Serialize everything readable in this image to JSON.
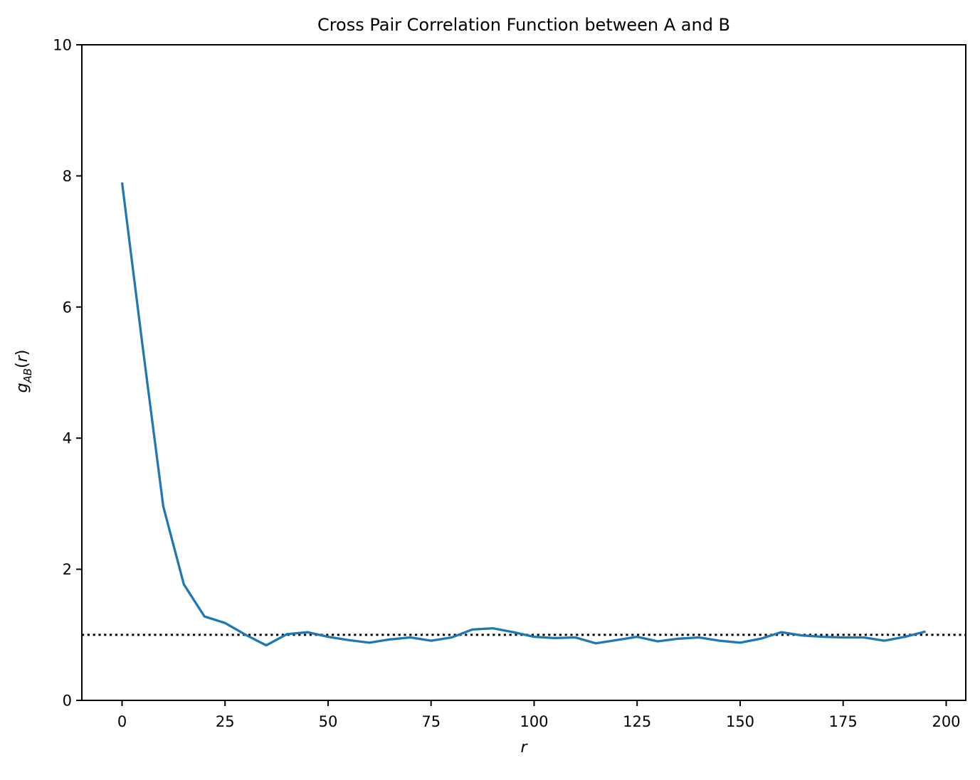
{
  "chart": {
    "title": "Cross Pair Correlation Function between A and B",
    "ylabel_parts": [
      "g",
      "AB",
      "(",
      "r",
      ")"
    ]
  },
  "chart_data": {
    "type": "line",
    "title": "Cross Pair Correlation Function between A and B",
    "xlabel": "r",
    "ylabel": "g_AB(r)",
    "x": [
      0,
      5,
      10,
      15,
      20,
      25,
      30,
      35,
      40,
      45,
      50,
      55,
      60,
      65,
      70,
      75,
      80,
      85,
      90,
      95,
      100,
      105,
      110,
      115,
      120,
      125,
      130,
      135,
      140,
      145,
      150,
      155,
      160,
      165,
      170,
      175,
      180,
      185,
      190,
      195
    ],
    "y": [
      7.9,
      5.4,
      2.96,
      1.77,
      1.28,
      1.18,
      1.0,
      0.84,
      1.01,
      1.04,
      0.97,
      0.92,
      0.88,
      0.93,
      0.96,
      0.91,
      0.96,
      1.08,
      1.1,
      1.04,
      0.97,
      0.95,
      0.96,
      0.87,
      0.92,
      0.97,
      0.9,
      0.94,
      0.96,
      0.91,
      0.88,
      0.94,
      1.04,
      0.99,
      0.97,
      0.96,
      0.96,
      0.91,
      0.97,
      1.05
    ],
    "xlim": [
      -9.75,
      204.75
    ],
    "ylim": [
      0,
      10
    ],
    "xticks": [
      0,
      25,
      50,
      75,
      100,
      125,
      150,
      175,
      200
    ],
    "yticks": [
      0,
      2,
      4,
      6,
      8,
      10
    ],
    "grid": false,
    "line_color": "#1f77b4",
    "line_width": 3.3,
    "baseline": {
      "y": 1,
      "style": "dotted",
      "color": "#000000"
    }
  }
}
